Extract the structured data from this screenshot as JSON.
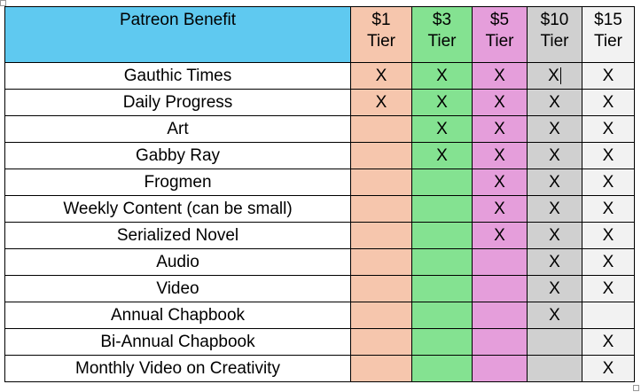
{
  "colors": {
    "header": "#5fc9f0",
    "t1": "#f6c6ad",
    "t3": "#84e291",
    "t5": "#e59edb",
    "t10": "#d0d0d0",
    "t15": "#f2f2f2"
  },
  "header": {
    "benefit": "Patreon Benefit",
    "tiers": [
      [
        "$1",
        "Tier"
      ],
      [
        "$3",
        "Tier"
      ],
      [
        "$5",
        "Tier"
      ],
      [
        "$10",
        "Tier"
      ],
      [
        "$15",
        "Tier"
      ]
    ]
  },
  "rows": [
    {
      "benefit": "Gauthic Times",
      "marks": [
        "X",
        "X",
        "X",
        "X",
        "X"
      ]
    },
    {
      "benefit": "Daily Progress",
      "marks": [
        "X",
        "X",
        "X",
        "X",
        "X"
      ]
    },
    {
      "benefit": "Art",
      "marks": [
        "",
        "X",
        "X",
        "X",
        "X"
      ]
    },
    {
      "benefit": "Gabby Ray",
      "marks": [
        "",
        "X",
        "X",
        "X",
        "X"
      ]
    },
    {
      "benefit": "Frogmen",
      "marks": [
        "",
        "",
        "X",
        "X",
        "X"
      ]
    },
    {
      "benefit": "Weekly Content (can be small)",
      "marks": [
        "",
        "",
        "X",
        "X",
        "X"
      ]
    },
    {
      "benefit": "Serialized Novel",
      "marks": [
        "",
        "",
        "X",
        "X",
        "X"
      ]
    },
    {
      "benefit": "Audio",
      "marks": [
        "",
        "",
        "",
        "X",
        "X"
      ]
    },
    {
      "benefit": "Video",
      "marks": [
        "",
        "",
        "",
        "X",
        "X"
      ]
    },
    {
      "benefit": "Annual Chapbook",
      "marks": [
        "",
        "",
        "",
        "X",
        ""
      ]
    },
    {
      "benefit": "Bi-Annual Chapbook",
      "marks": [
        "",
        "",
        "",
        "",
        "X"
      ]
    },
    {
      "benefit": "Monthly Video on Creativity",
      "marks": [
        "",
        "",
        "",
        "",
        "X"
      ]
    }
  ]
}
